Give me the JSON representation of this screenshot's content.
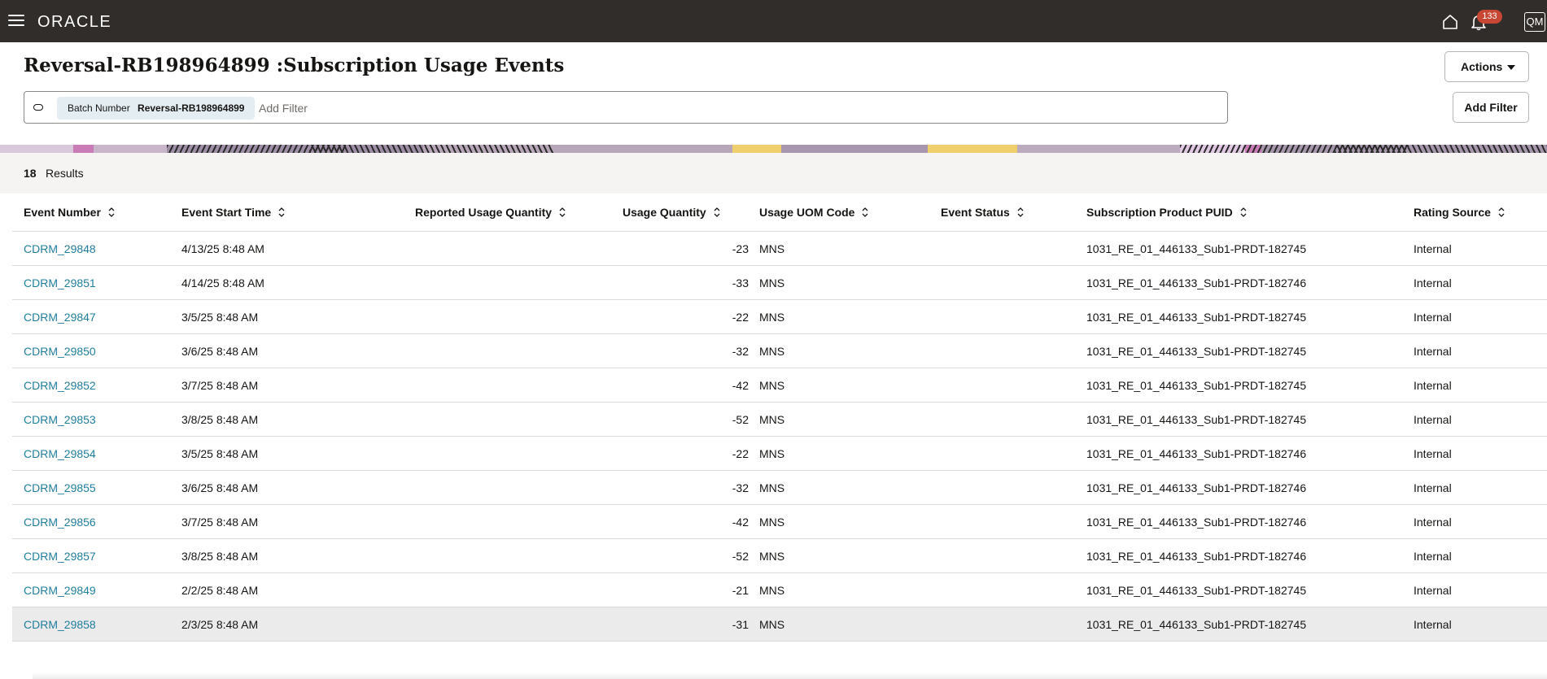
{
  "topbar": {
    "logo": "ORACLE",
    "notification_count": "133",
    "avatar_initials": "QM",
    "colors": {
      "bar": "#312d2a",
      "badge": "#c74634"
    }
  },
  "page": {
    "title": "Reversal-RB198964899 :Subscription Usage Events",
    "actions_label": "Actions",
    "add_filter_button": "Add Filter"
  },
  "filter": {
    "chip_key": "Batch Number",
    "chip_value": "Reversal-RB198964899",
    "placeholder": "Add Filter"
  },
  "results": {
    "count": "18",
    "label": "Results"
  },
  "table": {
    "columns": [
      "Event Number",
      "Event Start Time",
      "Reported Usage Quantity",
      "Usage Quantity",
      "Usage UOM Code",
      "Event Status",
      "Subscription Product PUID",
      "Rating Source"
    ],
    "rows": [
      [
        "CDRM_29848",
        "4/13/25 8:48 AM",
        "",
        "-23",
        "MNS",
        "",
        "1031_RE_01_446133_Sub1-PRDT-182745",
        "Internal"
      ],
      [
        "CDRM_29851",
        "4/14/25 8:48 AM",
        "",
        "-33",
        "MNS",
        "",
        "1031_RE_01_446133_Sub1-PRDT-182746",
        "Internal"
      ],
      [
        "CDRM_29847",
        "3/5/25 8:48 AM",
        "",
        "-22",
        "MNS",
        "",
        "1031_RE_01_446133_Sub1-PRDT-182745",
        "Internal"
      ],
      [
        "CDRM_29850",
        "3/6/25 8:48 AM",
        "",
        "-32",
        "MNS",
        "",
        "1031_RE_01_446133_Sub1-PRDT-182745",
        "Internal"
      ],
      [
        "CDRM_29852",
        "3/7/25 8:48 AM",
        "",
        "-42",
        "MNS",
        "",
        "1031_RE_01_446133_Sub1-PRDT-182745",
        "Internal"
      ],
      [
        "CDRM_29853",
        "3/8/25 8:48 AM",
        "",
        "-52",
        "MNS",
        "",
        "1031_RE_01_446133_Sub1-PRDT-182745",
        "Internal"
      ],
      [
        "CDRM_29854",
        "3/5/25 8:48 AM",
        "",
        "-22",
        "MNS",
        "",
        "1031_RE_01_446133_Sub1-PRDT-182746",
        "Internal"
      ],
      [
        "CDRM_29855",
        "3/6/25 8:48 AM",
        "",
        "-32",
        "MNS",
        "",
        "1031_RE_01_446133_Sub1-PRDT-182746",
        "Internal"
      ],
      [
        "CDRM_29856",
        "3/7/25 8:48 AM",
        "",
        "-42",
        "MNS",
        "",
        "1031_RE_01_446133_Sub1-PRDT-182746",
        "Internal"
      ],
      [
        "CDRM_29857",
        "3/8/25 8:48 AM",
        "",
        "-52",
        "MNS",
        "",
        "1031_RE_01_446133_Sub1-PRDT-182746",
        "Internal"
      ],
      [
        "CDRM_29849",
        "2/2/25 8:48 AM",
        "",
        "-21",
        "MNS",
        "",
        "1031_RE_01_446133_Sub1-PRDT-182745",
        "Internal"
      ],
      [
        "CDRM_29858",
        "2/3/25 8:48 AM",
        "",
        "-31",
        "MNS",
        "",
        "1031_RE_01_446133_Sub1-PRDT-182745",
        "Internal"
      ]
    ]
  }
}
